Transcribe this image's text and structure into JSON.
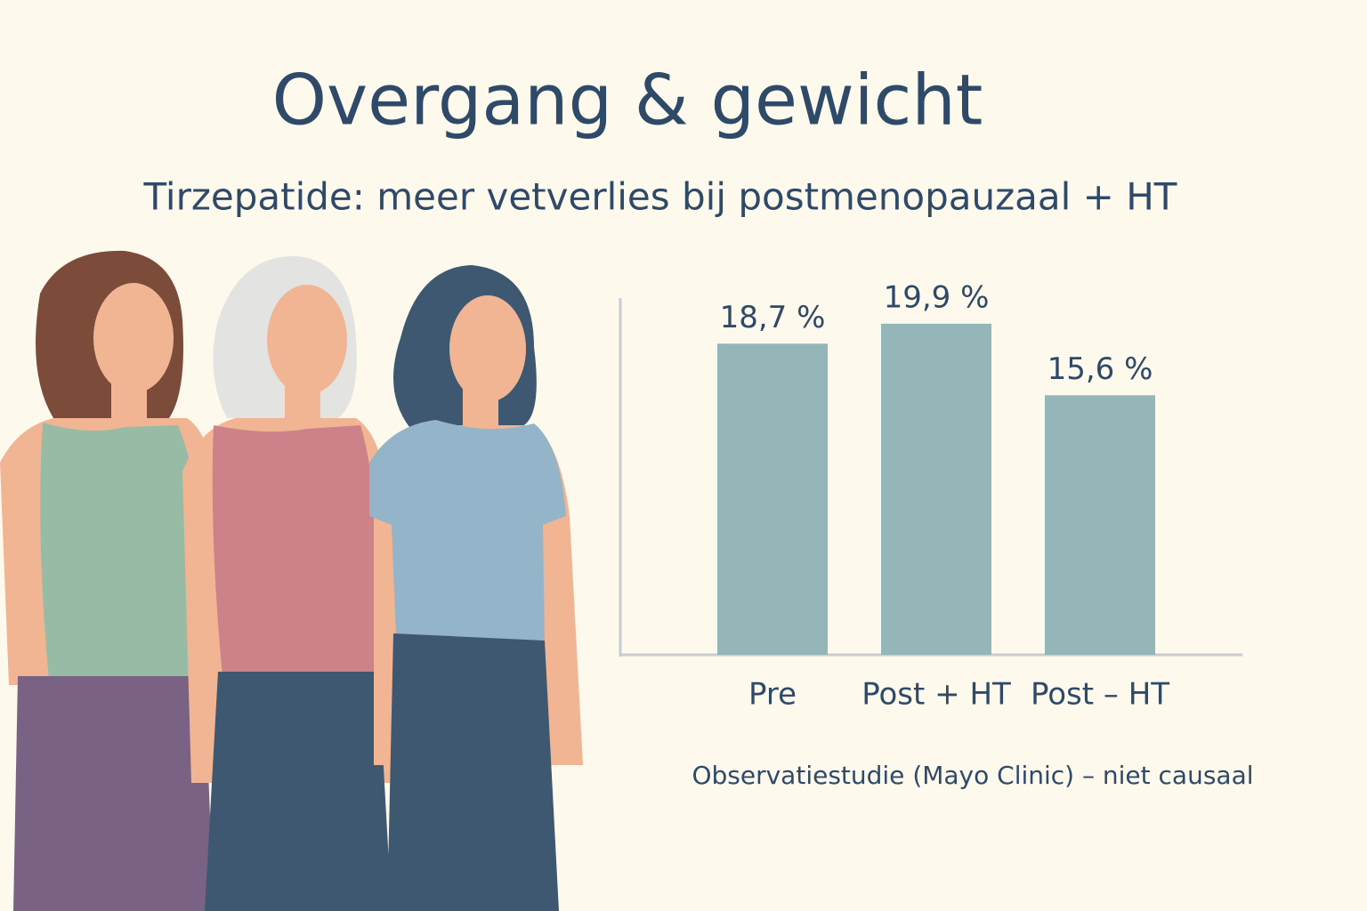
{
  "chart_data": {
    "type": "bar",
    "title": "Overgang & gewicht",
    "subtitle": "Tirzepatide: meer vetverlies bij postmenopauzaal + HT",
    "categories": [
      "Pre",
      "Post + HT",
      "Post – HT"
    ],
    "values": [
      18.7,
      19.9,
      15.6
    ],
    "value_labels": [
      "18,7 %",
      "19,9 %",
      "15,6 %"
    ],
    "color": "#95b6b8",
    "note": "Observatiestudie (Mayo Clinic) – niet causaal"
  }
}
